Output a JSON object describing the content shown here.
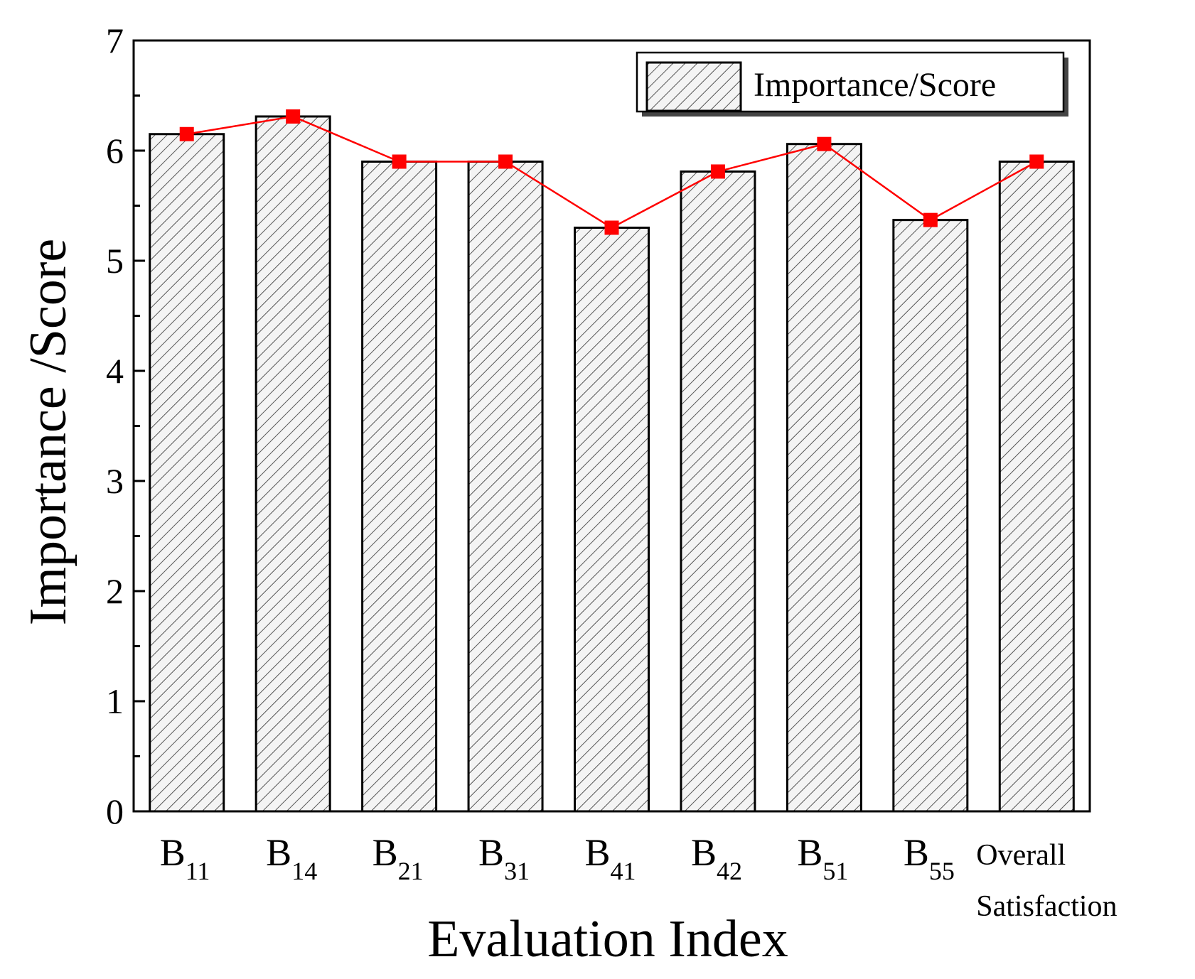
{
  "chart_data": {
    "type": "bar",
    "title": "",
    "xlabel": "Evaluation Index",
    "ylabel": "Importance /Score",
    "ylim": [
      0,
      7
    ],
    "yticks": [
      0,
      1,
      2,
      3,
      4,
      5,
      6,
      7
    ],
    "categories": [
      {
        "main": "B",
        "sub": "11"
      },
      {
        "main": "B",
        "sub": "14"
      },
      {
        "main": "B",
        "sub": "21"
      },
      {
        "main": "B",
        "sub": "31"
      },
      {
        "main": "B",
        "sub": "41"
      },
      {
        "main": "B",
        "sub": "42"
      },
      {
        "main": "B",
        "sub": "51"
      },
      {
        "main": "B",
        "sub": "55"
      },
      {
        "lines": [
          "Overall",
          "Satisfaction"
        ]
      }
    ],
    "series": [
      {
        "name": "Importance/Score",
        "kind": "bar",
        "pattern": "hatched",
        "values": [
          6.15,
          6.31,
          5.9,
          5.9,
          5.3,
          5.81,
          6.06,
          5.37,
          5.9
        ]
      },
      {
        "name": "",
        "kind": "line",
        "marker": "square",
        "color": "#ff0000",
        "values": [
          6.15,
          6.31,
          5.9,
          5.9,
          5.3,
          5.81,
          6.06,
          5.37,
          5.9
        ]
      }
    ],
    "legend": {
      "position": "top-right",
      "entries": [
        "Importance/Score"
      ]
    },
    "grid": false
  },
  "colors": {
    "line": "#ff0000",
    "marker": "#ff0000",
    "hatch": "#555555",
    "bar_edge": "#000000"
  }
}
